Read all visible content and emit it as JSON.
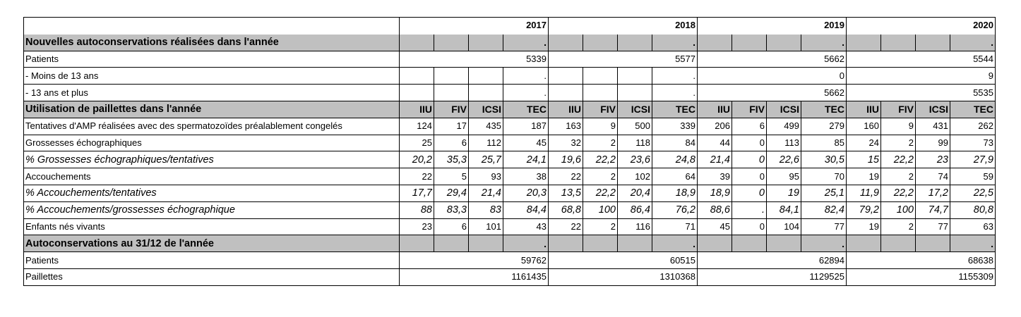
{
  "years": [
    "2017",
    "2018",
    "2019",
    "2020"
  ],
  "subcolumns": [
    "IIU",
    "FIV",
    "ICSI",
    "TEC"
  ],
  "sections": {
    "nouvelles": "Nouvelles autoconservations réalisées dans l'année",
    "utilisation": "Utilisation de paillettes dans l'année",
    "autoconservations": "Autoconservations au 31/12 de l'année"
  },
  "dot": ".",
  "new_autoconservation_rows": [
    {
      "label": "Patients",
      "values": [
        "5339",
        "5577",
        "5662",
        "5544"
      ]
    },
    {
      "label": "- Moins de 13 ans",
      "values": [
        ".",
        ".",
        "0",
        "9"
      ]
    },
    {
      "label": "- 13 ans et plus",
      "values": [
        ".",
        ".",
        "5662",
        "5535"
      ]
    }
  ],
  "usage_rows": [
    {
      "label": "Tentatives d'AMP réalisées avec des spermatozoïdes préalablement congelés",
      "italic": false,
      "values": [
        "124",
        "17",
        "435",
        "187",
        "163",
        "9",
        "500",
        "339",
        "206",
        "6",
        "499",
        "279",
        "160",
        "9",
        "431",
        "262"
      ]
    },
    {
      "label": "Grossesses échographiques",
      "italic": false,
      "values": [
        "25",
        "6",
        "112",
        "45",
        "32",
        "2",
        "118",
        "84",
        "44",
        "0",
        "113",
        "85",
        "24",
        "2",
        "99",
        "73"
      ]
    },
    {
      "label": "% Grossesses échographiques/tentatives",
      "italic": true,
      "values": [
        "20,2",
        "35,3",
        "25,7",
        "24,1",
        "19,6",
        "22,2",
        "23,6",
        "24,8",
        "21,4",
        "0",
        "22,6",
        "30,5",
        "15",
        "22,2",
        "23",
        "27,9"
      ]
    },
    {
      "label": "Accouchements",
      "italic": false,
      "values": [
        "22",
        "5",
        "93",
        "38",
        "22",
        "2",
        "102",
        "64",
        "39",
        "0",
        "95",
        "70",
        "19",
        "2",
        "74",
        "59"
      ]
    },
    {
      "label": "% Accouchements/tentatives",
      "italic": true,
      "values": [
        "17,7",
        "29,4",
        "21,4",
        "20,3",
        "13,5",
        "22,2",
        "20,4",
        "18,9",
        "18,9",
        "0",
        "19",
        "25,1",
        "11,9",
        "22,2",
        "17,2",
        "22,5"
      ]
    },
    {
      "label": "% Accouchements/grossesses échographique",
      "italic": true,
      "values": [
        "88",
        "83,3",
        "83",
        "84,4",
        "68,8",
        "100",
        "86,4",
        "76,2",
        "88,6",
        ".",
        "84,1",
        "82,4",
        "79,2",
        "100",
        "74,7",
        "80,8"
      ]
    },
    {
      "label": "Enfants nés vivants",
      "italic": false,
      "values": [
        "23",
        "6",
        "101",
        "43",
        "22",
        "2",
        "116",
        "71",
        "45",
        "0",
        "104",
        "77",
        "19",
        "2",
        "77",
        "63"
      ]
    }
  ],
  "stock_rows": [
    {
      "label": "Patients",
      "values": [
        "59762",
        "60515",
        "62894",
        "68638"
      ]
    },
    {
      "label": "Paillettes",
      "values": [
        "1161435",
        "1310368",
        "1129525",
        "1155309"
      ]
    }
  ]
}
